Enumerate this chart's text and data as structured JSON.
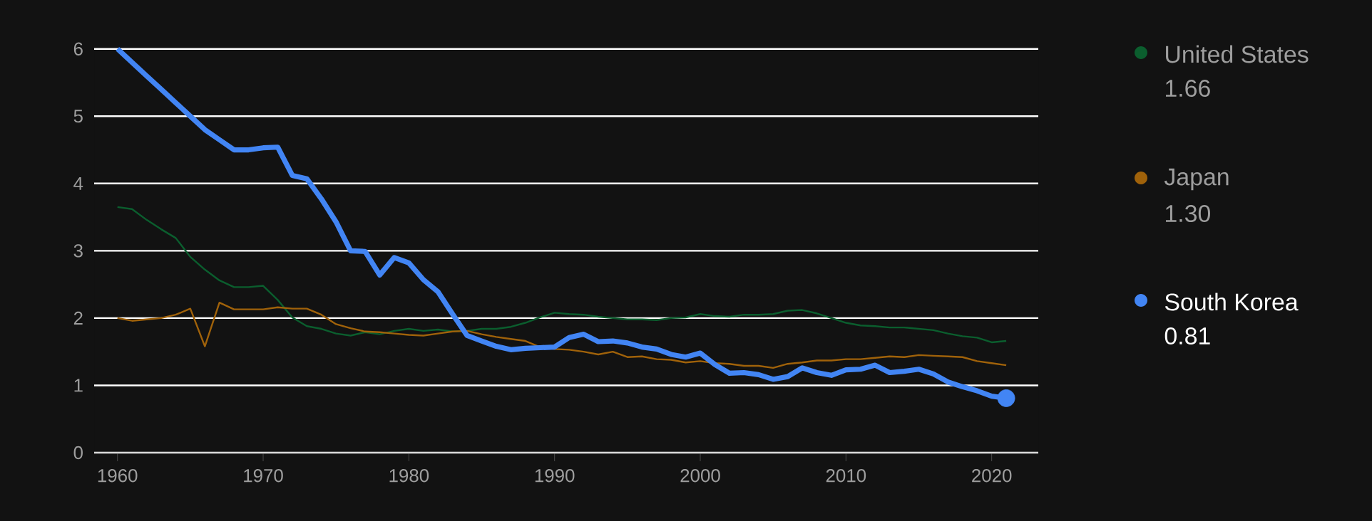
{
  "chart_data": {
    "type": "line",
    "x": [
      1960,
      1961,
      1962,
      1963,
      1964,
      1965,
      1966,
      1967,
      1968,
      1969,
      1970,
      1971,
      1972,
      1973,
      1974,
      1975,
      1976,
      1977,
      1978,
      1979,
      1980,
      1981,
      1982,
      1983,
      1984,
      1985,
      1986,
      1987,
      1988,
      1989,
      1990,
      1991,
      1992,
      1993,
      1994,
      1995,
      1996,
      1997,
      1998,
      1999,
      2000,
      2001,
      2002,
      2003,
      2004,
      2005,
      2006,
      2007,
      2008,
      2009,
      2010,
      2011,
      2012,
      2013,
      2014,
      2015,
      2016,
      2017,
      2018,
      2019,
      2020,
      2021
    ],
    "series": [
      {
        "name": "United States",
        "color": "#0b5e2e",
        "values": [
          3.65,
          3.62,
          3.46,
          3.32,
          3.19,
          2.91,
          2.72,
          2.56,
          2.46,
          2.46,
          2.48,
          2.27,
          2.01,
          1.88,
          1.84,
          1.77,
          1.74,
          1.79,
          1.76,
          1.81,
          1.84,
          1.81,
          1.83,
          1.8,
          1.81,
          1.84,
          1.84,
          1.87,
          1.93,
          2.01,
          2.08,
          2.06,
          2.05,
          2.02,
          2.0,
          1.98,
          1.98,
          1.97,
          2.0,
          2.01,
          2.06,
          2.03,
          2.02,
          2.05,
          2.05,
          2.06,
          2.11,
          2.12,
          2.07,
          2.0,
          1.93,
          1.89,
          1.88,
          1.86,
          1.86,
          1.84,
          1.82,
          1.77,
          1.73,
          1.71,
          1.64,
          1.66
        ]
      },
      {
        "name": "Japan",
        "color": "#a0620a",
        "values": [
          2.0,
          1.96,
          1.98,
          2.0,
          2.05,
          2.14,
          1.58,
          2.23,
          2.13,
          2.13,
          2.13,
          2.16,
          2.14,
          2.14,
          2.05,
          1.91,
          1.85,
          1.8,
          1.79,
          1.77,
          1.75,
          1.74,
          1.77,
          1.8,
          1.81,
          1.76,
          1.72,
          1.69,
          1.66,
          1.57,
          1.54,
          1.53,
          1.5,
          1.46,
          1.5,
          1.42,
          1.43,
          1.39,
          1.38,
          1.34,
          1.36,
          1.33,
          1.32,
          1.29,
          1.29,
          1.26,
          1.32,
          1.34,
          1.37,
          1.37,
          1.39,
          1.39,
          1.41,
          1.43,
          1.42,
          1.45,
          1.44,
          1.43,
          1.42,
          1.36,
          1.33,
          1.3
        ]
      },
      {
        "name": "South Korea",
        "color": "#4285f4",
        "values": [
          6.0,
          5.8,
          5.6,
          5.4,
          5.2,
          5.0,
          4.8,
          4.65,
          4.5,
          4.5,
          4.53,
          4.54,
          4.12,
          4.07,
          3.77,
          3.43,
          3.0,
          2.99,
          2.64,
          2.9,
          2.82,
          2.57,
          2.39,
          2.06,
          1.74,
          1.66,
          1.58,
          1.53,
          1.55,
          1.56,
          1.57,
          1.71,
          1.76,
          1.65,
          1.66,
          1.63,
          1.57,
          1.54,
          1.46,
          1.42,
          1.48,
          1.31,
          1.18,
          1.19,
          1.16,
          1.09,
          1.13,
          1.26,
          1.19,
          1.15,
          1.23,
          1.24,
          1.3,
          1.19,
          1.21,
          1.24,
          1.17,
          1.05,
          0.98,
          0.92,
          0.84,
          0.81
        ]
      },
      {
        "type": "scatter",
        "x": [
          2021
        ],
        "color": "#4285f4",
        "marker": "circle",
        "values": [
          0.81
        ]
      }
    ],
    "annotations": [
      "1.66",
      "1.30",
      "0.81"
    ],
    "xlim": [
      1958.4,
      2023.2
    ],
    "ylim": [
      0,
      6.05
    ],
    "xticks": [
      1960,
      1970,
      1980,
      1990,
      2000,
      2010,
      2020
    ],
    "yticks": [
      0,
      1,
      2,
      3,
      4,
      5,
      6
    ],
    "grid": "y",
    "legend": "right",
    "line_style": "solid"
  }
}
